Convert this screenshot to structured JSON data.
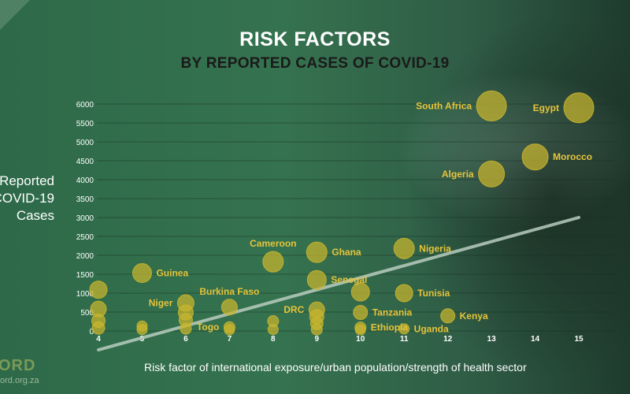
{
  "header": {
    "title": "RISK FACTORS",
    "subtitle": "BY REPORTED CASES OF COVID-19"
  },
  "footer": {
    "logo_text": "ORD",
    "url_text": "ord.org.za"
  },
  "colors": {
    "bubble": "#c9b52e",
    "label": "#e6c43a",
    "trend": "#b9cdbf",
    "text": "#ffffff",
    "subtitle": "#1a1a1a"
  },
  "chart_data": {
    "type": "scatter",
    "title": "RISK FACTORS",
    "subtitle": "BY REPORTED CASES OF COVID-19",
    "xlabel": "Risk factor of international exposure/urban population/strength of health sector",
    "ylabel": "Reported\nCOVID-19\nCases",
    "xlim": [
      4,
      15
    ],
    "ylim": [
      0,
      6000
    ],
    "xticks": [
      4,
      5,
      6,
      7,
      8,
      9,
      10,
      11,
      12,
      13,
      14,
      15
    ],
    "yticks": [
      0,
      500,
      1000,
      1500,
      2000,
      2500,
      3000,
      3500,
      4000,
      4500,
      5000,
      5500,
      6000
    ],
    "grid": "horizontal",
    "trendline": [
      {
        "x": 4,
        "y": -500
      },
      {
        "x": 15,
        "y": 3000
      }
    ],
    "points": [
      {
        "label": "South Africa",
        "x": 13,
        "y": 5950,
        "size": 3,
        "label_side": "left"
      },
      {
        "label": "Egypt",
        "x": 15,
        "y": 5900,
        "size": 3,
        "label_side": "left"
      },
      {
        "label": "Morocco",
        "x": 14,
        "y": 4600,
        "size": 2.5,
        "label_side": "right"
      },
      {
        "label": "Algeria",
        "x": 13,
        "y": 4150,
        "size": 2.5,
        "label_side": "left"
      },
      {
        "label": "Cameroon",
        "x": 8,
        "y": 1830,
        "size": 1.8,
        "label_side": "above"
      },
      {
        "label": "Ghana",
        "x": 9,
        "y": 2080,
        "size": 1.8,
        "label_side": "right"
      },
      {
        "label": "Nigeria",
        "x": 11,
        "y": 2180,
        "size": 1.8,
        "label_side": "right"
      },
      {
        "label": "Guinea",
        "x": 5,
        "y": 1530,
        "size": 1.6,
        "label_side": "right"
      },
      {
        "label": "Senegal",
        "x": 9,
        "y": 1350,
        "size": 1.6,
        "label_side": "right"
      },
      {
        "label": "Tunisia",
        "x": 11,
        "y": 1000,
        "size": 1.4,
        "label_side": "right"
      },
      {
        "label": "Niger",
        "x": 6,
        "y": 740,
        "size": 1.3,
        "label_side": "left"
      },
      {
        "label": "Burkina Faso",
        "x": 7,
        "y": 630,
        "size": 1.2,
        "label_side": "above"
      },
      {
        "label": "DRC",
        "x": 9,
        "y": 560,
        "size": 1.2,
        "label_side": "left"
      },
      {
        "label": "Tanzania",
        "x": 10,
        "y": 490,
        "size": 1.0,
        "label_side": "right"
      },
      {
        "label": "Kenya",
        "x": 12,
        "y": 400,
        "size": 1.0,
        "label_side": "right"
      },
      {
        "label": "Togo",
        "x": 7,
        "y": 100,
        "size": 0.6,
        "label_side": "left"
      },
      {
        "label": "Ethiopia",
        "x": 10,
        "y": 90,
        "size": 0.6,
        "label_side": "right"
      },
      {
        "label": "Uganda",
        "x": 11,
        "y": 55,
        "size": 0.5,
        "label_side": "right"
      },
      {
        "label": "",
        "x": 4,
        "y": 1090,
        "size": 1.4
      },
      {
        "label": "",
        "x": 4,
        "y": 580,
        "size": 1.2
      },
      {
        "label": "",
        "x": 4,
        "y": 270,
        "size": 0.9
      },
      {
        "label": "",
        "x": 4,
        "y": 80,
        "size": 0.8
      },
      {
        "label": "",
        "x": 5,
        "y": 130,
        "size": 0.5
      },
      {
        "label": "",
        "x": 5,
        "y": 40,
        "size": 0.5
      },
      {
        "label": "",
        "x": 6,
        "y": 490,
        "size": 1.1
      },
      {
        "label": "",
        "x": 6,
        "y": 290,
        "size": 0.9
      },
      {
        "label": "",
        "x": 6,
        "y": 60,
        "size": 0.6
      },
      {
        "label": "",
        "x": 7,
        "y": 30,
        "size": 0.5
      },
      {
        "label": "",
        "x": 8,
        "y": 260,
        "size": 0.6
      },
      {
        "label": "",
        "x": 8,
        "y": 40,
        "size": 0.5
      },
      {
        "label": "",
        "x": 9,
        "y": 380,
        "size": 1.0
      },
      {
        "label": "",
        "x": 9,
        "y": 200,
        "size": 0.8
      },
      {
        "label": "",
        "x": 9,
        "y": 40,
        "size": 0.6
      },
      {
        "label": "",
        "x": 10,
        "y": 1030,
        "size": 1.5
      },
      {
        "label": "",
        "x": 10,
        "y": 30,
        "size": 0.5
      }
    ]
  }
}
